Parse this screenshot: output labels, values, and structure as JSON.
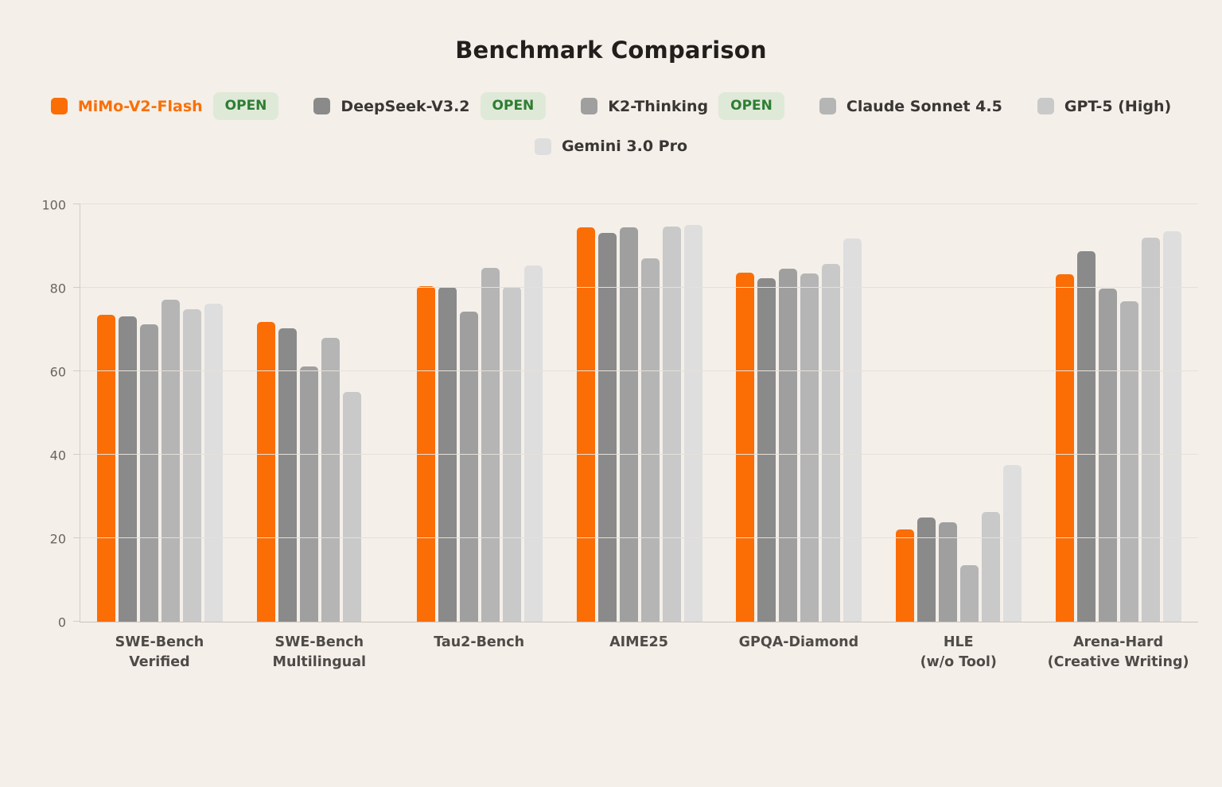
{
  "title": "Benchmark Comparison",
  "colors": {
    "background": "#f4efe9",
    "accent_orange": "#f97006",
    "open_badge_bg": "#dfe9d8",
    "open_badge_text": "#2e7d32",
    "gridline": "#e5e0da",
    "axis_line": "#c9c3bd",
    "ytick_label": "#6a6560",
    "category_label": "#4f4b47",
    "title_color": "#221e1b"
  },
  "legend": {
    "open_badge_label": "OPEN"
  },
  "chart_data": {
    "type": "bar",
    "title": "Benchmark Comparison",
    "categories": [
      "SWE-Bench\nVerified",
      "SWE-Bench\nMultilingual",
      "Tau2-Bench",
      "AIME25",
      "GPQA-Diamond",
      "HLE\n(w/o Tool)",
      "Arena-Hard\n(Creative Writing)"
    ],
    "series": [
      {
        "name": "MiMo-V2-Flash",
        "open": true,
        "highlight": true,
        "color": "#fb6d05",
        "values": [
          73.5,
          71.9,
          80.3,
          94.4,
          83.6,
          22.1,
          83.3
        ]
      },
      {
        "name": "DeepSeek-V3.2",
        "open": true,
        "highlight": false,
        "color": "#8a8a8a",
        "values": [
          73.1,
          70.2,
          80.2,
          93.1,
          82.3,
          25.0,
          88.7
        ]
      },
      {
        "name": "K2-Thinking",
        "open": true,
        "highlight": false,
        "color": "#9f9f9f",
        "values": [
          71.3,
          61.1,
          74.2,
          94.5,
          84.5,
          23.9,
          79.9
        ]
      },
      {
        "name": "Claude Sonnet 4.5",
        "open": false,
        "highlight": false,
        "color": "#b5b5b5",
        "values": [
          77.2,
          68.0,
          84.7,
          87.0,
          83.4,
          13.6,
          76.7
        ]
      },
      {
        "name": "GPT-5 (High)",
        "open": false,
        "highlight": false,
        "color": "#c9c9c9",
        "values": [
          74.9,
          55.1,
          80.2,
          94.7,
          85.7,
          26.2,
          92.1
        ]
      },
      {
        "name": "Gemini 3.0 Pro",
        "open": false,
        "highlight": false,
        "color": "#dedede",
        "values": [
          76.2,
          null,
          85.4,
          95.0,
          91.9,
          37.5,
          93.5
        ]
      }
    ],
    "ylim": [
      0,
      100
    ],
    "yticks": [
      0,
      20,
      40,
      60,
      80,
      100
    ],
    "grid": "horizontal",
    "legend_position": "top"
  }
}
